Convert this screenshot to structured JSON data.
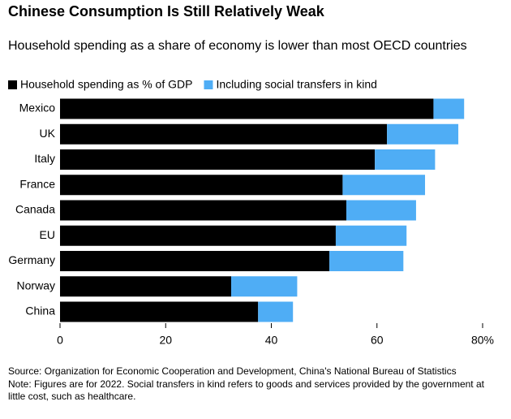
{
  "chart_data": {
    "type": "bar",
    "orientation": "horizontal",
    "stacked": true,
    "title": "Chinese Consumption Is Still Relatively Weak",
    "subtitle": "Household spending as a share of economy is lower than most OECD countries",
    "categories": [
      "Mexico",
      "UK",
      "Italy",
      "France",
      "Canada",
      "EU",
      "Germany",
      "Norway",
      "China"
    ],
    "series": [
      {
        "name": "Household spending as % of GDP",
        "color": "#000000",
        "values": [
          70.7,
          61.9,
          59.6,
          53.5,
          54.2,
          52.2,
          51.0,
          32.4,
          37.5
        ]
      },
      {
        "name": "Including social transfers in kind",
        "color": "#4fadf5",
        "values": [
          5.8,
          13.5,
          11.4,
          15.6,
          13.2,
          13.4,
          14.0,
          12.5,
          6.6
        ]
      }
    ],
    "xlim": [
      0,
      80
    ],
    "xticks": [
      0,
      20,
      40,
      60,
      {
        "value": 80,
        "label": "80%"
      }
    ],
    "source": "Source: Organization for Economic Cooperation and Development, China's National Bureau of Statistics",
    "note": "Note: Figures are for 2022. Social transfers in kind refers to goods and services provided by the government at little cost, such as healthcare."
  }
}
